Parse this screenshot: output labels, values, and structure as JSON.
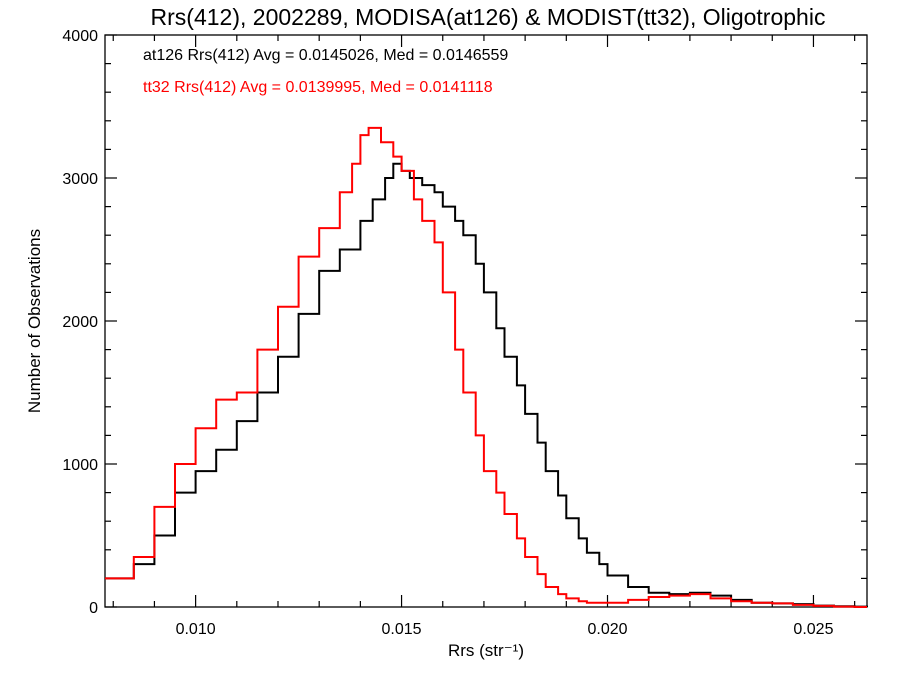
{
  "chart_data": {
    "type": "line",
    "step": true,
    "title": "Rrs(412), 2002289, MODISA(at126) & MODIST(tt32), Oligotrophic",
    "xlabel": "Rrs (str⁻¹)",
    "ylabel": "Number of Observations",
    "xlim": [
      0.0078,
      0.0263
    ],
    "ylim": [
      0,
      4000
    ],
    "xticks": [
      0.01,
      0.015,
      0.02,
      0.025
    ],
    "xtick_labels": [
      "0.010",
      "0.015",
      "0.020",
      "0.025"
    ],
    "yticks": [
      0,
      1000,
      2000,
      3000,
      4000
    ],
    "ytick_labels": [
      "0",
      "1000",
      "2000",
      "3000",
      "4000"
    ],
    "grid": false,
    "legend": "none",
    "annotations": [
      {
        "text": "at126 Rrs(412) Avg = 0.0145026, Med = 0.0146559",
        "color": "#000000"
      },
      {
        "text": "tt32 Rrs(412) Avg = 0.0139995, Med = 0.0141118",
        "color": "#ff0000"
      }
    ],
    "series": [
      {
        "color": "#000000",
        "x": [
          0.0078,
          0.0085,
          0.009,
          0.0095,
          0.01,
          0.0105,
          0.011,
          0.0115,
          0.012,
          0.0125,
          0.013,
          0.0135,
          0.014,
          0.0143,
          0.0146,
          0.0148,
          0.015,
          0.0152,
          0.0155,
          0.0158,
          0.016,
          0.0163,
          0.0165,
          0.0168,
          0.017,
          0.0173,
          0.0175,
          0.0178,
          0.018,
          0.0183,
          0.0185,
          0.0188,
          0.019,
          0.0193,
          0.0195,
          0.0198,
          0.02,
          0.0205,
          0.021,
          0.0215,
          0.022,
          0.0225,
          0.023,
          0.0235,
          0.024,
          0.0245,
          0.025,
          0.0255,
          0.026,
          0.0263
        ],
        "y": [
          200,
          300,
          500,
          800,
          950,
          1100,
          1300,
          1500,
          1750,
          2050,
          2350,
          2500,
          2700,
          2850,
          3000,
          3100,
          3050,
          3000,
          2950,
          2900,
          2800,
          2700,
          2600,
          2400,
          2200,
          1950,
          1750,
          1550,
          1350,
          1150,
          950,
          780,
          620,
          480,
          380,
          300,
          220,
          140,
          100,
          90,
          100,
          80,
          50,
          30,
          25,
          20,
          10,
          5,
          3,
          0
        ]
      },
      {
        "color": "#ff0000",
        "x": [
          0.0078,
          0.0085,
          0.009,
          0.0095,
          0.01,
          0.0105,
          0.011,
          0.0115,
          0.012,
          0.0125,
          0.013,
          0.0135,
          0.0138,
          0.014,
          0.0142,
          0.0145,
          0.0148,
          0.015,
          0.0153,
          0.0155,
          0.0158,
          0.016,
          0.0163,
          0.0165,
          0.0168,
          0.017,
          0.0173,
          0.0175,
          0.0178,
          0.018,
          0.0183,
          0.0185,
          0.0188,
          0.019,
          0.0193,
          0.0195,
          0.0198,
          0.02,
          0.0205,
          0.021,
          0.0215,
          0.022,
          0.0225,
          0.023,
          0.0235,
          0.024,
          0.0245,
          0.025,
          0.0255,
          0.026,
          0.0263
        ],
        "y": [
          200,
          350,
          700,
          1000,
          1250,
          1450,
          1500,
          1800,
          2100,
          2450,
          2650,
          2900,
          3100,
          3300,
          3350,
          3250,
          3150,
          3050,
          2850,
          2700,
          2550,
          2200,
          1800,
          1500,
          1200,
          950,
          800,
          650,
          480,
          350,
          230,
          140,
          90,
          60,
          40,
          30,
          30,
          30,
          50,
          70,
          80,
          90,
          60,
          40,
          30,
          25,
          15,
          8,
          3,
          0,
          0
        ]
      }
    ]
  }
}
